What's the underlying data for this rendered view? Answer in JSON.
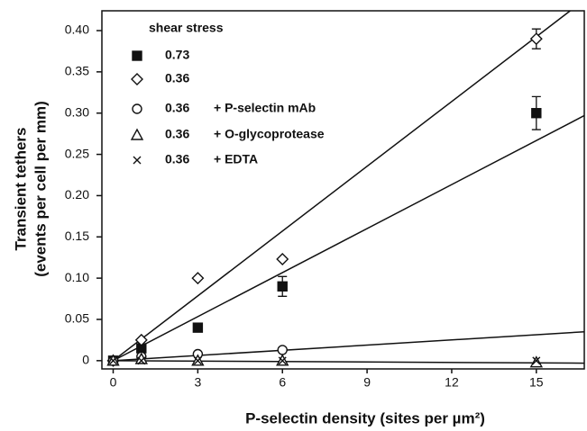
{
  "chart_data": {
    "type": "scatter",
    "x_label": "P-selectin density (sites per µm²)",
    "y_label": [
      "Transient tethers",
      "(events per cell per mm)"
    ],
    "legend_title": "shear stress",
    "xlim": [
      -0.4,
      16.7
    ],
    "xticks": [
      0,
      3,
      6,
      9,
      12,
      15
    ],
    "ylim": [
      -0.01,
      0.424
    ],
    "yticks": [
      0,
      0.05,
      {
        "value": 0.1,
        "label": "0.10"
      },
      0.15,
      {
        "value": 0.2,
        "label": "0.20"
      },
      0.25,
      {
        "value": 0.3,
        "label": "0.30"
      },
      0.35,
      {
        "value": 0.4,
        "label": "0.40"
      }
    ],
    "series": [
      {
        "name": "0.73",
        "marker": "square",
        "color": "#111111",
        "x": [
          0,
          1,
          3,
          6,
          15
        ],
        "values": [
          0,
          0.015,
          0.04,
          0.09,
          0.3
        ],
        "errors": [
          null,
          null,
          null,
          0.012,
          0.02
        ],
        "line_x": [
          0,
          16.7
        ],
        "line_y": [
          0,
          0.297
        ]
      },
      {
        "name": "0.36",
        "marker": "diamond",
        "color": "#111111",
        "x": [
          0,
          1,
          3,
          6,
          15
        ],
        "values": [
          0,
          0.025,
          0.1,
          0.123,
          0.39
        ],
        "errors": [
          null,
          null,
          null,
          null,
          0.012
        ],
        "line_x": [
          0,
          16.2
        ],
        "line_y": [
          0,
          0.424
        ]
      },
      {
        "name": "0.36",
        "treatment": "+ P-selectin mAb",
        "marker": "circle",
        "color": "#111111",
        "x": [
          0,
          1,
          3,
          6
        ],
        "values": [
          0,
          0.005,
          0.008,
          0.013
        ],
        "line_x": [
          0,
          16.7
        ],
        "line_y": [
          0,
          0.035
        ]
      },
      {
        "name": "0.36",
        "treatment": "+ O-glycoprotease",
        "marker": "triangle",
        "color": "#111111",
        "x": [
          0,
          1,
          3,
          6,
          15
        ],
        "values": [
          0,
          0.002,
          0,
          0,
          -0.002
        ],
        "line_x": [
          0,
          16.7
        ],
        "line_y": [
          0,
          -0.003
        ]
      },
      {
        "name": "0.36",
        "treatment": "+ EDTA",
        "marker": "x",
        "color": "#111111",
        "x": [
          0,
          1,
          3,
          6,
          15
        ],
        "values": [
          0,
          0,
          0,
          0,
          0
        ]
      }
    ]
  }
}
